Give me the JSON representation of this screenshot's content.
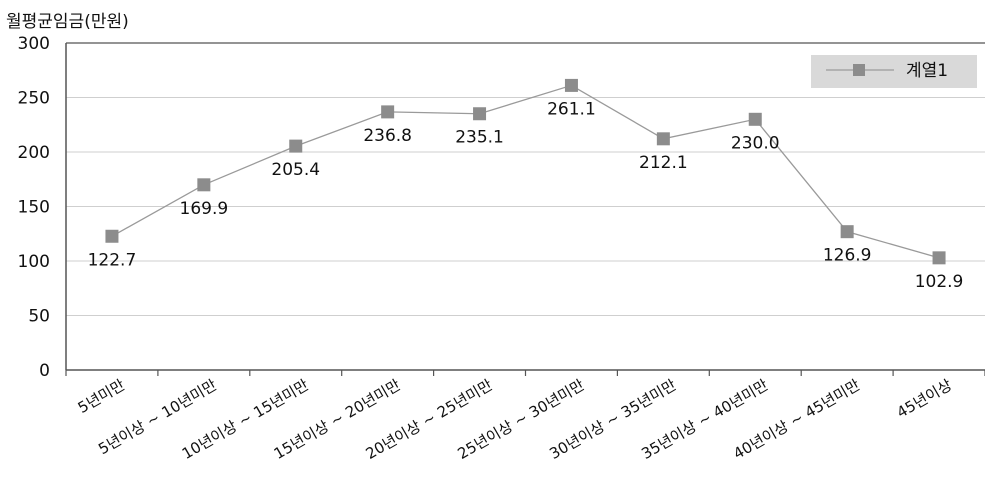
{
  "chart_data": {
    "type": "line",
    "ylabel": "월평균임금(만원)",
    "categories": [
      "5년미만",
      "5년이상 ~ 10년미만",
      "10년이상 ~ 15년미만",
      "15년이상 ~ 20년미만",
      "20년이상 ~ 25년미만",
      "25년이상 ~ 30년미만",
      "30년이상 ~ 35년미만",
      "35년이상 ~ 40년미만",
      "40년이상 ~ 45년미만",
      "45년이상"
    ],
    "series": [
      {
        "name": "계열1",
        "values": [
          122.7,
          169.9,
          205.4,
          236.8,
          235.1,
          261.1,
          212.1,
          230.0,
          126.9,
          102.9
        ],
        "labels": [
          "122.7",
          "169.9",
          "205.4",
          "236.8",
          "235.1",
          "261.1",
          "212.1",
          "230.0",
          "126.9",
          "102.9"
        ]
      }
    ],
    "yticks": [
      "0",
      "50",
      "100",
      "150",
      "200",
      "250",
      "300"
    ],
    "ylim": [
      0,
      300
    ],
    "grid": true,
    "legend_position": "top-right",
    "colors": {
      "line": "#9a9a9a",
      "marker": "#8c8c8c",
      "grid": "#cfcfcf",
      "axis": "#555555",
      "legend_bg": "#d9d9d9"
    }
  }
}
